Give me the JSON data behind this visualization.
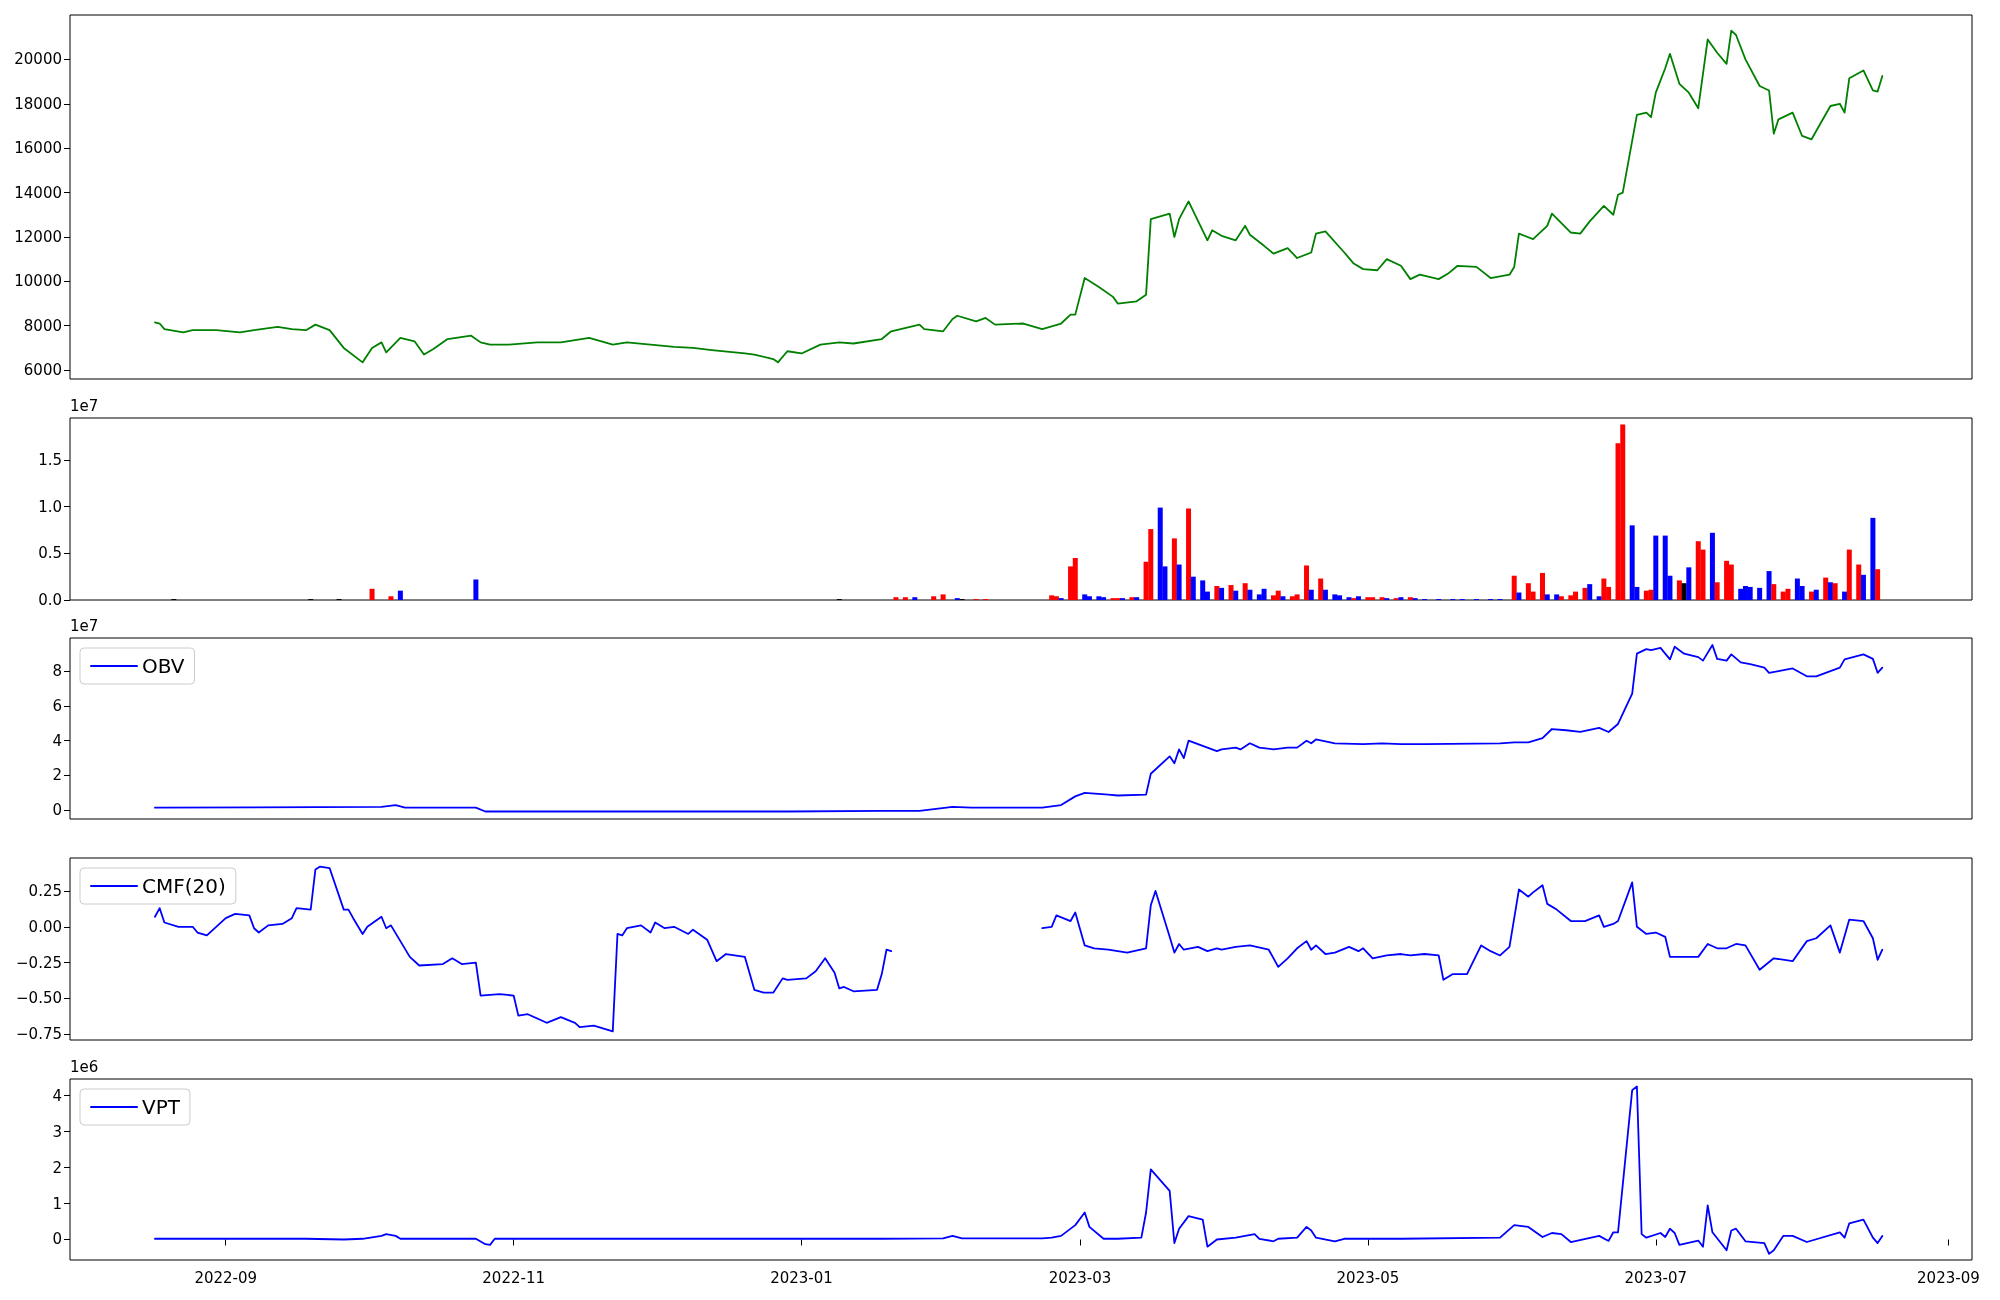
{
  "chart_data": [
    {
      "type": "line",
      "xlim": [
        "2022-07-30",
        "2023-09-06"
      ],
      "ylim": [
        5600,
        22000
      ],
      "yticks": [
        6000,
        8000,
        10000,
        12000,
        14000,
        16000,
        18000,
        20000
      ],
      "tick_labels": "y",
      "grid": false,
      "series": [
        {
          "color": "#008000",
          "x": [
            "2022-08-17",
            "2022-08-18",
            "2022-08-19",
            "2022-08-23",
            "2022-08-25",
            "2022-08-30",
            "2022-09-04",
            "2022-09-07",
            "2022-09-12",
            "2022-09-15",
            "2022-09-18",
            "2022-09-20",
            "2022-09-23",
            "2022-09-26",
            "2022-09-30",
            "2022-10-02",
            "2022-10-04",
            "2022-10-05",
            "2022-10-08",
            "2022-10-11",
            "2022-10-13",
            "2022-10-15",
            "2022-10-18",
            "2022-10-23",
            "2022-10-25",
            "2022-10-27",
            "2022-10-31",
            "2022-11-06",
            "2022-11-11",
            "2022-11-17",
            "2022-11-22",
            "2022-11-25",
            "2022-11-30",
            "2022-12-05",
            "2022-12-09",
            "2022-12-13",
            "2022-12-20",
            "2022-12-22",
            "2022-12-26",
            "2022-12-27",
            "2022-12-29",
            "2023-01-01",
            "2023-01-05",
            "2023-01-09",
            "2023-01-12",
            "2023-01-18",
            "2023-01-20",
            "2023-01-26",
            "2023-01-27",
            "2023-01-31",
            "2023-02-02",
            "2023-02-03",
            "2023-02-07",
            "2023-02-09",
            "2023-02-11",
            "2023-02-17",
            "2023-02-21",
            "2023-02-25",
            "2023-02-27",
            "2023-02-28",
            "2023-03-02",
            "2023-03-05",
            "2023-03-08",
            "2023-03-09",
            "2023-03-13",
            "2023-03-15",
            "2023-03-16",
            "2023-03-20",
            "2023-03-21",
            "2023-03-22",
            "2023-03-24",
            "2023-03-28",
            "2023-03-29",
            "2023-03-31",
            "2023-04-03",
            "2023-04-05",
            "2023-04-06",
            "2023-04-09",
            "2023-04-11",
            "2023-04-14",
            "2023-04-16",
            "2023-04-19",
            "2023-04-20",
            "2023-04-22",
            "2023-04-26",
            "2023-04-28",
            "2023-04-30",
            "2023-05-03",
            "2023-05-05",
            "2023-05-08",
            "2023-05-10",
            "2023-05-12",
            "2023-05-16",
            "2023-05-18",
            "2023-05-20",
            "2023-05-24",
            "2023-05-27",
            "2023-05-31",
            "2023-06-01",
            "2023-06-02",
            "2023-06-05",
            "2023-06-08",
            "2023-06-09",
            "2023-06-13",
            "2023-06-15",
            "2023-06-17",
            "2023-06-20",
            "2023-06-22",
            "2023-06-23",
            "2023-06-24",
            "2023-06-27",
            "2023-06-29",
            "2023-06-30",
            "2023-07-01",
            "2023-07-03",
            "2023-07-04",
            "2023-07-06",
            "2023-07-08",
            "2023-07-10",
            "2023-07-12",
            "2023-07-14",
            "2023-07-16",
            "2023-07-17",
            "2023-07-18",
            "2023-07-20",
            "2023-07-23",
            "2023-07-25",
            "2023-07-26",
            "2023-07-27",
            "2023-07-30",
            "2023-08-01",
            "2023-08-03",
            "2023-08-07",
            "2023-08-09",
            "2023-08-10",
            "2023-08-11",
            "2023-08-14",
            "2023-08-16",
            "2023-08-17",
            "2023-08-18"
          ],
          "values": [
            8150,
            8100,
            7850,
            7700,
            7800,
            7800,
            7700,
            7800,
            7950,
            7850,
            7800,
            8050,
            7800,
            7000,
            6350,
            7000,
            7250,
            6800,
            7450,
            7300,
            6700,
            6950,
            7400,
            7550,
            7250,
            7150,
            7150,
            7250,
            7250,
            7450,
            7150,
            7250,
            7150,
            7050,
            7000,
            6900,
            6750,
            6700,
            6500,
            6350,
            6850,
            6750,
            7150,
            7250,
            7200,
            7400,
            7750,
            8050,
            7850,
            7750,
            8300,
            8450,
            8200,
            8350,
            8050,
            8100,
            7850,
            8100,
            8500,
            8500,
            10150,
            9750,
            9300,
            9000,
            9100,
            9400,
            12800,
            13050,
            12000,
            12800,
            13600,
            11850,
            12300,
            12050,
            11850,
            12500,
            12100,
            11600,
            11250,
            11500,
            11050,
            11300,
            12150,
            12250,
            11300,
            10800,
            10550,
            10500,
            11000,
            10700,
            10100,
            10300,
            10100,
            10350,
            10700,
            10650,
            10150,
            10300,
            10650,
            12150,
            11900,
            12500,
            13050,
            12200,
            12150,
            12700,
            13400,
            13000,
            13900,
            14000,
            17500,
            17600,
            17400,
            18500,
            19600,
            20250,
            18900,
            18500,
            17800,
            20900,
            20300,
            19800,
            21300,
            21100,
            20000,
            18800,
            18600,
            16650,
            17300,
            17600,
            16550,
            16400,
            17900,
            18000,
            17600,
            19150,
            19500,
            18600,
            18550,
            19250
          ]
        }
      ]
    },
    {
      "type": "bar",
      "xlim": [
        "2022-07-30",
        "2023-09-06"
      ],
      "ylim": [
        0,
        1.95
      ],
      "yticks": [
        {
          "value": 0,
          "label": "0.0"
        },
        0.5,
        {
          "value": 1,
          "label": "1.0"
        },
        1.5
      ],
      "tick_labels": "y",
      "grid": false,
      "annotations": [
        "1e7"
      ],
      "x": [
        "2022-08-21",
        "2022-09-19",
        "2022-09-25",
        "2022-10-02",
        "2022-10-06",
        "2022-10-08",
        "2022-10-24",
        "2023-01-09",
        "2023-01-21",
        "2023-01-23",
        "2023-01-25",
        "2023-01-29",
        "2023-01-31",
        "2023-02-03",
        "2023-02-04",
        "2023-02-07",
        "2023-02-09",
        "2023-02-23",
        "2023-02-24",
        "2023-02-25",
        "2023-02-27",
        "2023-02-28",
        "2023-03-02",
        "2023-03-03",
        "2023-03-05",
        "2023-03-06",
        "2023-03-08",
        "2023-03-09",
        "2023-03-10",
        "2023-03-12",
        "2023-03-13",
        "2023-03-15",
        "2023-03-16",
        "2023-03-18",
        "2023-03-19",
        "2023-03-21",
        "2023-03-22",
        "2023-03-24",
        "2023-03-25",
        "2023-03-27",
        "2023-03-28",
        "2023-03-30",
        "2023-03-31",
        "2023-04-02",
        "2023-04-03",
        "2023-04-05",
        "2023-04-06",
        "2023-04-08",
        "2023-04-09",
        "2023-04-11",
        "2023-04-12",
        "2023-04-13",
        "2023-04-15",
        "2023-04-16",
        "2023-04-18",
        "2023-04-19",
        "2023-04-21",
        "2023-04-22",
        "2023-04-24",
        "2023-04-25",
        "2023-04-27",
        "2023-04-28",
        "2023-04-29",
        "2023-05-01",
        "2023-05-02",
        "2023-05-04",
        "2023-05-05",
        "2023-05-07",
        "2023-05-08",
        "2023-05-10",
        "2023-05-11",
        "2023-05-13",
        "2023-05-16",
        "2023-05-19",
        "2023-05-21",
        "2023-05-24",
        "2023-05-27",
        "2023-05-29",
        "2023-06-01",
        "2023-06-02",
        "2023-06-04",
        "2023-06-05",
        "2023-06-07",
        "2023-06-08",
        "2023-06-10",
        "2023-06-11",
        "2023-06-13",
        "2023-06-14",
        "2023-06-16",
        "2023-06-17",
        "2023-06-19",
        "2023-06-20",
        "2023-06-21",
        "2023-06-23",
        "2023-06-24",
        "2023-06-26",
        "2023-06-27",
        "2023-06-29",
        "2023-06-30",
        "2023-07-01",
        "2023-07-03",
        "2023-07-04",
        "2023-07-06",
        "2023-07-07",
        "2023-07-08",
        "2023-07-10",
        "2023-07-11",
        "2023-07-13",
        "2023-07-14",
        "2023-07-16",
        "2023-07-17",
        "2023-07-19",
        "2023-07-20",
        "2023-07-21",
        "2023-07-23",
        "2023-07-25",
        "2023-07-26",
        "2023-07-28",
        "2023-07-29",
        "2023-07-31",
        "2023-08-01",
        "2023-08-03",
        "2023-08-04",
        "2023-08-06",
        "2023-08-07",
        "2023-08-08",
        "2023-08-10",
        "2023-08-11",
        "2023-08-13",
        "2023-08-14",
        "2023-08-16",
        "2023-08-17"
      ],
      "values": [
        0.01,
        0.01,
        0.01,
        0.12,
        0.04,
        0.1,
        0.22,
        0.01,
        0.03,
        0.03,
        0.03,
        0.04,
        0.06,
        0.02,
        0.01,
        0.01,
        0.01,
        0.05,
        0.04,
        0.02,
        0.36,
        0.45,
        0.06,
        0.04,
        0.04,
        0.03,
        0.02,
        0.02,
        0.02,
        0.03,
        0.03,
        0.41,
        0.76,
        0.99,
        0.36,
        0.66,
        0.38,
        0.98,
        0.25,
        0.21,
        0.09,
        0.15,
        0.13,
        0.16,
        0.1,
        0.18,
        0.11,
        0.06,
        0.12,
        0.05,
        0.1,
        0.04,
        0.04,
        0.06,
        0.37,
        0.11,
        0.23,
        0.11,
        0.06,
        0.05,
        0.03,
        0.02,
        0.04,
        0.03,
        0.03,
        0.03,
        0.02,
        0.02,
        0.03,
        0.03,
        0.02,
        0.01,
        0.01,
        0.01,
        0.01,
        0.01,
        0.01,
        0.01,
        0.26,
        0.08,
        0.18,
        0.09,
        0.29,
        0.06,
        0.06,
        0.04,
        0.05,
        0.09,
        0.13,
        0.17,
        0.04,
        0.23,
        0.14,
        1.68,
        1.88,
        0.8,
        0.14,
        0.1,
        0.11,
        0.69,
        0.69,
        0.26,
        0.21,
        0.18,
        0.35,
        0.63,
        0.54,
        0.72,
        0.19,
        0.42,
        0.38,
        0.12,
        0.15,
        0.14,
        0.13,
        0.31,
        0.17,
        0.09,
        0.12,
        0.23,
        0.15,
        0.09,
        0.11,
        0.24,
        0.19,
        0.18,
        0.09,
        0.54,
        0.38,
        0.27,
        0.88,
        0.33
      ],
      "colors": [
        "#000000",
        "#000000",
        "#000000",
        "#ff0000",
        "#ff0000",
        "#0000ff",
        "#0000ff",
        "#000000",
        "#ff0000",
        "#ff0000",
        "#0000ff",
        "#ff0000",
        "#ff0000",
        "#0000ff",
        "#000000",
        "#ff0000",
        "#ff0000",
        "#ff0000",
        "#ff0000",
        "#0000ff",
        "#ff0000",
        "#ff0000",
        "#0000ff",
        "#0000ff",
        "#0000ff",
        "#0000ff",
        "#ff0000",
        "#ff0000",
        "#0000ff",
        "#ff0000",
        "#0000ff",
        "#ff0000",
        "#ff0000",
        "#0000ff",
        "#0000ff",
        "#ff0000",
        "#0000ff",
        "#ff0000",
        "#0000ff",
        "#0000ff",
        "#0000ff",
        "#ff0000",
        "#0000ff",
        "#ff0000",
        "#0000ff",
        "#ff0000",
        "#0000ff",
        "#0000ff",
        "#0000ff",
        "#ff0000",
        "#ff0000",
        "#0000ff",
        "#ff0000",
        "#ff0000",
        "#ff0000",
        "#0000ff",
        "#ff0000",
        "#0000ff",
        "#0000ff",
        "#0000ff",
        "#0000ff",
        "#ff0000",
        "#0000ff",
        "#ff0000",
        "#ff0000",
        "#ff0000",
        "#0000ff",
        "#ff0000",
        "#0000ff",
        "#ff0000",
        "#0000ff",
        "#0000ff",
        "#0000ff",
        "#0000ff",
        "#0000ff",
        "#0000ff",
        "#0000ff",
        "#0000ff",
        "#ff0000",
        "#0000ff",
        "#ff0000",
        "#ff0000",
        "#ff0000",
        "#0000ff",
        "#0000ff",
        "#ff0000",
        "#ff0000",
        "#ff0000",
        "#ff0000",
        "#0000ff",
        "#0000ff",
        "#ff0000",
        "#ff0000",
        "#ff0000",
        "#ff0000",
        "#0000ff",
        "#0000ff",
        "#ff0000",
        "#ff0000",
        "#0000ff",
        "#0000ff",
        "#0000ff",
        "#ff0000",
        "#000000",
        "#0000ff",
        "#ff0000",
        "#ff0000",
        "#0000ff",
        "#ff0000",
        "#ff0000",
        "#ff0000",
        "#0000ff",
        "#0000ff",
        "#0000ff",
        "#0000ff",
        "#0000ff",
        "#ff0000",
        "#ff0000",
        "#ff0000",
        "#0000ff",
        "#0000ff",
        "#ff0000",
        "#0000ff",
        "#ff0000",
        "#0000ff",
        "#ff0000",
        "#0000ff",
        "#ff0000",
        "#ff0000",
        "#0000ff",
        "#0000ff",
        "#ff0000"
      ]
    },
    {
      "type": "line",
      "xlim": [
        "2022-07-30",
        "2023-09-06"
      ],
      "ylim": [
        -0.5,
        9.9
      ],
      "yticks": [
        0,
        2,
        4,
        6,
        8
      ],
      "tick_labels": "y",
      "grid": false,
      "legend": "top left",
      "annotations": [
        "1e7"
      ],
      "series": [
        {
          "name": "OBV",
          "color": "#0000ff",
          "x": [
            "2022-08-17",
            "2022-10-04",
            "2022-10-07",
            "2022-10-09",
            "2022-10-24",
            "2022-10-26",
            "2022-11-27",
            "2022-12-29",
            "2023-01-18",
            "2023-01-26",
            "2023-02-02",
            "2023-02-06",
            "2023-02-21",
            "2023-02-25",
            "2023-02-28",
            "2023-03-02",
            "2023-03-07",
            "2023-03-09",
            "2023-03-15",
            "2023-03-16",
            "2023-03-20",
            "2023-03-21",
            "2023-03-22",
            "2023-03-23",
            "2023-03-24",
            "2023-03-27",
            "2023-03-30",
            "2023-03-31",
            "2023-04-03",
            "2023-04-04",
            "2023-04-06",
            "2023-04-08",
            "2023-04-11",
            "2023-04-14",
            "2023-04-16",
            "2023-04-18",
            "2023-04-19",
            "2023-04-20",
            "2023-04-24",
            "2023-04-30",
            "2023-05-04",
            "2023-05-08",
            "2023-05-13",
            "2023-05-29",
            "2023-06-01",
            "2023-06-04",
            "2023-06-07",
            "2023-06-09",
            "2023-06-12",
            "2023-06-15",
            "2023-06-19",
            "2023-06-21",
            "2023-06-23",
            "2023-06-26",
            "2023-06-27",
            "2023-06-29",
            "2023-06-30",
            "2023-07-02",
            "2023-07-04",
            "2023-07-05",
            "2023-07-07",
            "2023-07-10",
            "2023-07-11",
            "2023-07-13",
            "2023-07-14",
            "2023-07-16",
            "2023-07-17",
            "2023-07-19",
            "2023-07-21",
            "2023-07-24",
            "2023-07-25",
            "2023-07-27",
            "2023-07-30",
            "2023-08-02",
            "2023-08-04",
            "2023-08-07",
            "2023-08-09",
            "2023-08-10",
            "2023-08-14",
            "2023-08-16",
            "2023-08-17",
            "2023-08-18"
          ],
          "values": [
            0.15,
            0.2,
            0.3,
            0.15,
            0.15,
            -0.07,
            -0.07,
            -0.07,
            -0.03,
            -0.03,
            0.2,
            0.15,
            0.15,
            0.3,
            0.8,
            1.0,
            0.9,
            0.85,
            0.9,
            2.1,
            3.1,
            2.7,
            3.5,
            3.0,
            4.0,
            3.7,
            3.4,
            3.5,
            3.6,
            3.5,
            3.85,
            3.6,
            3.5,
            3.6,
            3.6,
            4.0,
            3.85,
            4.07,
            3.85,
            3.8,
            3.85,
            3.8,
            3.8,
            3.85,
            3.9,
            3.9,
            4.15,
            4.67,
            4.6,
            4.5,
            4.74,
            4.5,
            4.96,
            6.7,
            9.0,
            9.26,
            9.2,
            9.33,
            8.67,
            9.4,
            9.0,
            8.8,
            8.6,
            9.5,
            8.7,
            8.6,
            8.96,
            8.5,
            8.4,
            8.2,
            7.9,
            8.0,
            8.15,
            7.7,
            7.7,
            8.0,
            8.2,
            8.67,
            8.96,
            8.7,
            7.9,
            8.2
          ]
        }
      ]
    },
    {
      "type": "line",
      "xlim": [
        "2022-07-30",
        "2023-09-06"
      ],
      "ylim": [
        -0.79,
        0.48
      ],
      "yticks": [
        {
          "value": -0.75,
          "label": "−0.75"
        },
        {
          "value": -0.5,
          "label": "−0.50"
        },
        {
          "value": -0.25,
          "label": "−0.25"
        },
        {
          "value": 0,
          "label": "0.00"
        },
        0.25
      ],
      "tick_labels": "y",
      "grid": false,
      "legend": "top left",
      "series": [
        {
          "name": "CMF(20)",
          "color": "#0000ff",
          "x": [
            "2022-08-17",
            "2022-08-18",
            "2022-08-19",
            "2022-08-22",
            "2022-08-25",
            "2022-08-26",
            "2022-08-28",
            "2022-09-01",
            "2022-09-03",
            "2022-09-06",
            "2022-09-07",
            "2022-09-08",
            "2022-09-10",
            "2022-09-13",
            "2022-09-15",
            "2022-09-16",
            "2022-09-19",
            "2022-09-20",
            "2022-09-21",
            "2022-09-23",
            "2022-09-26",
            "2022-09-27",
            "2022-09-28",
            "2022-09-30",
            "2022-10-01",
            "2022-10-04",
            "2022-10-05",
            "2022-10-06",
            "2022-10-10",
            "2022-10-12",
            "2022-10-17",
            "2022-10-19",
            "2022-10-21",
            "2022-10-24",
            "2022-10-25",
            "2022-10-29",
            "2022-11-01",
            "2022-11-02",
            "2022-11-04",
            "2022-11-08",
            "2022-11-11",
            "2022-11-14",
            "2022-11-15",
            "2022-11-18",
            "2022-11-22",
            "2022-11-23",
            "2022-11-24",
            "2022-11-25",
            "2022-11-28",
            "2022-11-30",
            "2022-12-01",
            "2022-12-03",
            "2022-12-05",
            "2022-12-08",
            "2022-12-09",
            "2022-12-12",
            "2022-12-14",
            "2022-12-16",
            "2022-12-20",
            "2022-12-22",
            "2022-12-24",
            "2022-12-26",
            "2022-12-28",
            "2022-12-29",
            "2023-01-02",
            "2023-01-04",
            "2023-01-06",
            "2023-01-08",
            "2023-01-09",
            "2023-01-10",
            "2023-01-12",
            "2023-01-17",
            "2023-01-18",
            "2023-01-19",
            "2023-01-20",
            "2023-02-10",
            "2023-02-21",
            "2023-02-23",
            "2023-02-24",
            "2023-02-27",
            "2023-02-28",
            "2023-03-02",
            "2023-03-04",
            "2023-03-07",
            "2023-03-11",
            "2023-03-15",
            "2023-03-16",
            "2023-03-17",
            "2023-03-20",
            "2023-03-21",
            "2023-03-22",
            "2023-03-23",
            "2023-03-26",
            "2023-03-28",
            "2023-03-30",
            "2023-03-31",
            "2023-04-03",
            "2023-04-06",
            "2023-04-10",
            "2023-04-12",
            "2023-04-14",
            "2023-04-16",
            "2023-04-18",
            "2023-04-19",
            "2023-04-20",
            "2023-04-22",
            "2023-04-24",
            "2023-04-27",
            "2023-04-29",
            "2023-04-30",
            "2023-05-02",
            "2023-05-05",
            "2023-05-08",
            "2023-05-10",
            "2023-05-13",
            "2023-05-16",
            "2023-05-17",
            "2023-05-19",
            "2023-05-22",
            "2023-05-25",
            "2023-05-27",
            "2023-05-29",
            "2023-05-31",
            "2023-06-02",
            "2023-06-04",
            "2023-06-05",
            "2023-06-07",
            "2023-06-08",
            "2023-06-10",
            "2023-06-13",
            "2023-06-16",
            "2023-06-19",
            "2023-06-20",
            "2023-06-22",
            "2023-06-23",
            "2023-06-26",
            "2023-06-27",
            "2023-06-29",
            "2023-07-01",
            "2023-07-03",
            "2023-07-04",
            "2023-07-06",
            "2023-07-10",
            "2023-07-12",
            "2023-07-14",
            "2023-07-16",
            "2023-07-18",
            "2023-07-20",
            "2023-07-23",
            "2023-07-26",
            "2023-07-30",
            "2023-08-02",
            "2023-08-04",
            "2023-08-07",
            "2023-08-09",
            "2023-08-11",
            "2023-08-14",
            "2023-08-16",
            "2023-08-17",
            "2023-08-18"
          ],
          "values": [
            0.07,
            0.13,
            0.03,
            0,
            0,
            -0.04,
            -0.06,
            0.06,
            0.09,
            0.08,
            -0.01,
            -0.04,
            0.01,
            0.02,
            0.06,
            0.13,
            0.12,
            0.4,
            0.42,
            0.41,
            0.12,
            0.12,
            0.06,
            -0.05,
            0,
            0.07,
            -0.01,
            0.01,
            -0.21,
            -0.27,
            -0.26,
            -0.22,
            -0.26,
            -0.25,
            -0.48,
            -0.47,
            -0.48,
            -0.62,
            -0.61,
            -0.67,
            -0.63,
            -0.67,
            -0.7,
            -0.69,
            -0.73,
            -0.05,
            -0.06,
            -0.01,
            0.01,
            -0.04,
            0.03,
            -0.01,
            0,
            -0.05,
            -0.02,
            -0.09,
            -0.24,
            -0.19,
            -0.21,
            -0.44,
            -0.46,
            -0.46,
            -0.36,
            -0.37,
            -0.36,
            -0.31,
            -0.22,
            -0.32,
            -0.43,
            -0.42,
            -0.45,
            -0.44,
            -0.33,
            -0.16,
            -0.17,
            null,
            -0.01,
            0,
            0.08,
            0.04,
            0.1,
            -0.13,
            -0.15,
            -0.16,
            -0.18,
            -0.15,
            0.15,
            0.25,
            -0.07,
            -0.18,
            -0.12,
            -0.16,
            -0.14,
            -0.17,
            -0.15,
            -0.16,
            -0.14,
            -0.13,
            -0.16,
            -0.28,
            -0.22,
            -0.15,
            -0.1,
            -0.16,
            -0.13,
            -0.19,
            -0.18,
            -0.14,
            -0.17,
            -0.15,
            -0.22,
            -0.2,
            -0.19,
            -0.2,
            -0.19,
            -0.2,
            -0.37,
            -0.33,
            -0.33,
            -0.13,
            -0.17,
            -0.2,
            -0.14,
            0.26,
            0.21,
            0.24,
            0.29,
            0.16,
            0.12,
            0.04,
            0.04,
            0.08,
            0,
            0.02,
            0.04,
            0.31,
            0,
            -0.05,
            -0.04,
            -0.07,
            -0.21,
            -0.21,
            -0.21,
            -0.12,
            -0.15,
            -0.15,
            -0.12,
            -0.13,
            -0.3,
            -0.22,
            -0.24,
            -0.1,
            -0.08,
            0.01,
            -0.18,
            0.05,
            0.04,
            -0.08,
            -0.23,
            -0.16
          ]
        }
      ]
    },
    {
      "type": "line",
      "xlim": [
        "2022-07-30",
        "2023-09-06"
      ],
      "ylim": [
        -0.57,
        4.46
      ],
      "yticks": [
        0,
        1,
        2,
        3,
        4
      ],
      "xticks": [
        "2022-09",
        "2022-11",
        "2023-01",
        "2023-03",
        "2023-05",
        "2023-07",
        "2023-09"
      ],
      "grid": false,
      "legend": "top left",
      "annotations": [
        "1e6"
      ],
      "series": [
        {
          "name": "VPT",
          "color": "#0000ff",
          "x": [
            "2022-08-17",
            "2022-09-18",
            "2022-09-26",
            "2022-09-30",
            "2022-10-04",
            "2022-10-05",
            "2022-10-07",
            "2022-10-08",
            "2022-10-12",
            "2022-10-24",
            "2022-10-26",
            "2022-10-27",
            "2022-10-28",
            "2023-01-18",
            "2023-01-31",
            "2023-02-02",
            "2023-02-04",
            "2023-02-21",
            "2023-02-23",
            "2023-02-25",
            "2023-02-28",
            "2023-03-02",
            "2023-03-03",
            "2023-03-06",
            "2023-03-09",
            "2023-03-14",
            "2023-03-15",
            "2023-03-16",
            "2023-03-20",
            "2023-03-21",
            "2023-03-22",
            "2023-03-24",
            "2023-03-27",
            "2023-03-28",
            "2023-03-30",
            "2023-04-03",
            "2023-04-07",
            "2023-04-08",
            "2023-04-11",
            "2023-04-12",
            "2023-04-16",
            "2023-04-18",
            "2023-04-19",
            "2023-04-20",
            "2023-04-24",
            "2023-04-26",
            "2023-05-08",
            "2023-05-29",
            "2023-06-01",
            "2023-06-04",
            "2023-06-07",
            "2023-06-09",
            "2023-06-11",
            "2023-06-13",
            "2023-06-19",
            "2023-06-21",
            "2023-06-22",
            "2023-06-23",
            "2023-06-26",
            "2023-06-27",
            "2023-06-28",
            "2023-06-29",
            "2023-07-02",
            "2023-07-03",
            "2023-07-04",
            "2023-07-05",
            "2023-07-06",
            "2023-07-10",
            "2023-07-11",
            "2023-07-12",
            "2023-07-13",
            "2023-07-16",
            "2023-07-17",
            "2023-07-18",
            "2023-07-20",
            "2023-07-24",
            "2023-07-25",
            "2023-07-26",
            "2023-07-28",
            "2023-07-30",
            "2023-08-02",
            "2023-08-09",
            "2023-08-10",
            "2023-08-11",
            "2023-08-14",
            "2023-08-16",
            "2023-08-17",
            "2023-08-18"
          ],
          "values": [
            0.02,
            0.02,
            0,
            0.02,
            0.1,
            0.15,
            0.1,
            0.02,
            0.02,
            0.02,
            -0.13,
            -0.15,
            0.02,
            0.02,
            0.03,
            0.1,
            0.03,
            0.03,
            0.05,
            0.1,
            0.4,
            0.75,
            0.35,
            0.02,
            0.02,
            0.05,
            0.75,
            1.95,
            1.35,
            -0.1,
            0.3,
            0.65,
            0.55,
            -0.2,
            0,
            0.05,
            0.15,
            0.02,
            -0.05,
            0.02,
            0.05,
            0.35,
            0.25,
            0.05,
            -0.05,
            0.02,
            0.02,
            0.05,
            0.4,
            0.35,
            0.07,
            0.18,
            0.15,
            -0.07,
            0.1,
            -0.04,
            0.2,
            0.2,
            4.15,
            4.25,
            0.15,
            0.05,
            0.18,
            0.07,
            0.3,
            0.18,
            -0.15,
            -0.03,
            -0.2,
            0.95,
            0.2,
            -0.3,
            0.25,
            0.3,
            -0.05,
            -0.1,
            -0.4,
            -0.3,
            0.1,
            0.1,
            -0.07,
            0.2,
            0.05,
            0.45,
            0.55,
            0.05,
            -0.1,
            0.1
          ]
        }
      ]
    }
  ]
}
